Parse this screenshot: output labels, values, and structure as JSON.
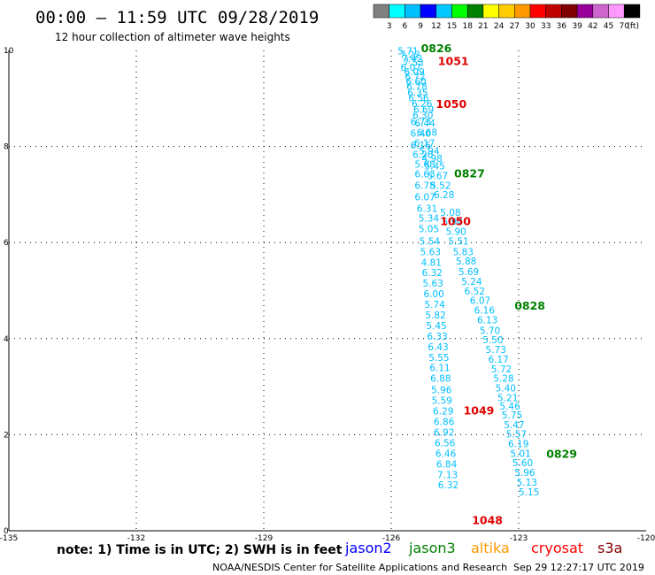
{
  "chart_data": {
    "type": "scatter",
    "title": "00:00 – 11:59 UTC 09/28/2019",
    "subtitle": "12 hour collection of altimeter wave heights",
    "x_ticks": [
      "-135",
      "-132",
      "-129",
      "-126",
      "-123",
      "-120"
    ],
    "y_ticks": [
      "0",
      "2",
      "4",
      "6",
      "8",
      "10"
    ],
    "xlim": [
      -135,
      -120
    ],
    "ylim": [
      0,
      10
    ],
    "grid": true,
    "colorbar": {
      "labels": [
        "3",
        "6",
        "9",
        "12",
        "15",
        "18",
        "21",
        "24",
        "27",
        "30",
        "33",
        "36",
        "39",
        "42",
        "45",
        "70"
      ],
      "unit": "(ft)",
      "colors": [
        "#808080",
        "#00ffff",
        "#00bfff",
        "#0000ff",
        "#00c8ff",
        "#00ff00",
        "#008000",
        "#ffff00",
        "#ffcc00",
        "#ff9900",
        "#ff0000",
        "#c00000",
        "#800000",
        "#990099",
        "#cc66cc",
        "#ff99ff",
        "#000000"
      ]
    },
    "tracks": [
      {
        "name": "track-a",
        "color": "#00bfff",
        "points": [
          {
            "x": -125.85,
            "y": 9.92,
            "v": "5.71"
          },
          {
            "x": -125.8,
            "y": 9.84,
            "v": "7.22"
          },
          {
            "x": -125.75,
            "y": 9.76,
            "v": "7.42"
          },
          {
            "x": -125.72,
            "y": 9.68,
            "v": "7.53"
          },
          {
            "x": -125.78,
            "y": 9.58,
            "v": "6.07"
          },
          {
            "x": -125.7,
            "y": 9.48,
            "v": "6.09"
          },
          {
            "x": -125.68,
            "y": 9.38,
            "v": "6.72"
          },
          {
            "x": -125.66,
            "y": 9.28,
            "v": "6.60"
          },
          {
            "x": -125.64,
            "y": 9.18,
            "v": "6.78"
          },
          {
            "x": -125.62,
            "y": 9.05,
            "v": "6.35"
          },
          {
            "x": -125.6,
            "y": 8.94,
            "v": "6.56"
          },
          {
            "x": -125.52,
            "y": 8.82,
            "v": "6.26"
          },
          {
            "x": -125.48,
            "y": 8.7,
            "v": "6.69"
          },
          {
            "x": -125.5,
            "y": 8.58,
            "v": "6.30"
          },
          {
            "x": -125.55,
            "y": 8.44,
            "v": "6.73"
          },
          {
            "x": -125.45,
            "y": 8.42,
            "v": "6.44"
          },
          {
            "x": -125.4,
            "y": 8.22,
            "v": "6.68"
          },
          {
            "x": -125.55,
            "y": 8.2,
            "v": "6.40"
          },
          {
            "x": -125.46,
            "y": 8.0,
            "v": "6.17"
          },
          {
            "x": -125.55,
            "y": 7.96,
            "v": "6.16"
          },
          {
            "x": -125.35,
            "y": 7.84,
            "v": "5.94"
          },
          {
            "x": -125.5,
            "y": 7.76,
            "v": "6.20"
          },
          {
            "x": -125.28,
            "y": 7.68,
            "v": "4.98"
          },
          {
            "x": -125.45,
            "y": 7.56,
            "v": "5.68"
          },
          {
            "x": -125.22,
            "y": 7.52,
            "v": "5.45"
          },
          {
            "x": -125.45,
            "y": 7.36,
            "v": "6.63"
          },
          {
            "x": -125.15,
            "y": 7.32,
            "v": "5.67"
          },
          {
            "x": -125.45,
            "y": 7.12,
            "v": "6.78"
          },
          {
            "x": -125.08,
            "y": 7.12,
            "v": "5.52"
          },
          {
            "x": -125.0,
            "y": 6.92,
            "v": "6.28"
          },
          {
            "x": -125.45,
            "y": 6.88,
            "v": "6.07"
          },
          {
            "x": -125.4,
            "y": 6.64,
            "v": "6.31"
          },
          {
            "x": -124.85,
            "y": 6.56,
            "v": "5.08"
          },
          {
            "x": -125.36,
            "y": 6.44,
            "v": "5.34"
          },
          {
            "x": -124.8,
            "y": 6.36,
            "v": "5.94"
          },
          {
            "x": -125.36,
            "y": 6.22,
            "v": "5.05"
          },
          {
            "x": -124.72,
            "y": 6.16,
            "v": "5.90"
          },
          {
            "x": -125.34,
            "y": 5.96,
            "v": "5.54"
          },
          {
            "x": -124.66,
            "y": 5.96,
            "v": "5.51"
          },
          {
            "x": -125.32,
            "y": 5.74,
            "v": "5.63"
          },
          {
            "x": -124.55,
            "y": 5.74,
            "v": "5.83"
          },
          {
            "x": -125.3,
            "y": 5.52,
            "v": "4.81"
          },
          {
            "x": -124.48,
            "y": 5.54,
            "v": "5.88"
          },
          {
            "x": -124.42,
            "y": 5.32,
            "v": "5.69"
          },
          {
            "x": -125.28,
            "y": 5.3,
            "v": "6.32"
          },
          {
            "x": -124.35,
            "y": 5.12,
            "v": "5.24"
          },
          {
            "x": -125.26,
            "y": 5.08,
            "v": "5.63"
          },
          {
            "x": -124.28,
            "y": 4.92,
            "v": "6.52"
          },
          {
            "x": -125.24,
            "y": 4.86,
            "v": "6.00"
          },
          {
            "x": -124.15,
            "y": 4.72,
            "v": "6.07"
          },
          {
            "x": -125.22,
            "y": 4.64,
            "v": "5.74"
          },
          {
            "x": -124.05,
            "y": 4.52,
            "v": "6.16"
          },
          {
            "x": -125.2,
            "y": 4.42,
            "v": "5.82"
          },
          {
            "x": -123.98,
            "y": 4.32,
            "v": "6.13"
          },
          {
            "x": -125.18,
            "y": 4.2,
            "v": "5.45"
          },
          {
            "x": -123.92,
            "y": 4.1,
            "v": "5.70"
          },
          {
            "x": -125.16,
            "y": 3.98,
            "v": "6.33"
          },
          {
            "x": -123.85,
            "y": 3.9,
            "v": "5.50"
          },
          {
            "x": -125.14,
            "y": 3.76,
            "v": "6.43"
          },
          {
            "x": -123.78,
            "y": 3.7,
            "v": "5.73"
          },
          {
            "x": -125.12,
            "y": 3.54,
            "v": "5.55"
          },
          {
            "x": -123.72,
            "y": 3.5,
            "v": "6.17"
          },
          {
            "x": -125.1,
            "y": 3.32,
            "v": "6.11"
          },
          {
            "x": -123.65,
            "y": 3.3,
            "v": "5.72"
          },
          {
            "x": -125.08,
            "y": 3.1,
            "v": "6.88"
          },
          {
            "x": -123.6,
            "y": 3.1,
            "v": "5.28"
          },
          {
            "x": -123.55,
            "y": 2.9,
            "v": "5.40"
          },
          {
            "x": -125.06,
            "y": 2.86,
            "v": "5.96"
          },
          {
            "x": -123.5,
            "y": 2.7,
            "v": "5.21"
          },
          {
            "x": -125.05,
            "y": 2.64,
            "v": "5.59"
          },
          {
            "x": -123.45,
            "y": 2.52,
            "v": "5.46"
          },
          {
            "x": -123.4,
            "y": 2.34,
            "v": "5.75"
          },
          {
            "x": -125.02,
            "y": 2.42,
            "v": "6.29"
          },
          {
            "x": -123.35,
            "y": 2.14,
            "v": "5.47"
          },
          {
            "x": -125.0,
            "y": 2.2,
            "v": "6.86"
          },
          {
            "x": -123.3,
            "y": 1.94,
            "v": "5.57"
          },
          {
            "x": -125.0,
            "y": 1.98,
            "v": "6.92"
          },
          {
            "x": -123.25,
            "y": 1.74,
            "v": "6.19"
          },
          {
            "x": -124.98,
            "y": 1.76,
            "v": "6.56"
          },
          {
            "x": -123.2,
            "y": 1.54,
            "v": "5.01"
          },
          {
            "x": -124.96,
            "y": 1.54,
            "v": "6.46"
          },
          {
            "x": -123.15,
            "y": 1.34,
            "v": "5.60"
          },
          {
            "x": -124.94,
            "y": 1.32,
            "v": "6.84"
          },
          {
            "x": -123.1,
            "y": 1.14,
            "v": "5.96"
          },
          {
            "x": -124.92,
            "y": 1.1,
            "v": "7.13"
          },
          {
            "x": -123.05,
            "y": 0.94,
            "v": "5.13"
          },
          {
            "x": -124.9,
            "y": 0.88,
            "v": "6.32"
          },
          {
            "x": -123.0,
            "y": 0.74,
            "v": "5.15"
          }
        ]
      }
    ],
    "time_labels": [
      {
        "x": -125.3,
        "y": 9.96,
        "v": "0826",
        "color": "#008000"
      },
      {
        "x": -124.9,
        "y": 9.7,
        "v": "1051",
        "color": "#e00000"
      },
      {
        "x": -124.95,
        "y": 8.8,
        "v": "1050",
        "color": "#e00000"
      },
      {
        "x": -124.52,
        "y": 7.36,
        "v": "0827",
        "color": "#008000"
      },
      {
        "x": -124.85,
        "y": 6.36,
        "v": "1050",
        "color": "#e00000"
      },
      {
        "x": -123.1,
        "y": 4.6,
        "v": "0828",
        "color": "#008000"
      },
      {
        "x": -124.3,
        "y": 2.42,
        "v": "1049",
        "color": "#e00000"
      },
      {
        "x": -122.35,
        "y": 1.52,
        "v": "0829",
        "color": "#008000"
      },
      {
        "x": -124.1,
        "y": 0.14,
        "v": "1048",
        "color": "#e00000"
      }
    ],
    "note": "note:  1) Time is in UTC; 2) SWH is in feet",
    "satellites": [
      {
        "name": "jason2",
        "color": "#0000ff"
      },
      {
        "name": "jason3",
        "color": "#008000"
      },
      {
        "name": "altika",
        "color": "#ff9900"
      },
      {
        "name": "cryosat",
        "color": "#ff0000"
      },
      {
        "name": "s3a",
        "color": "#800000"
      }
    ],
    "footer_left": "NOAA/NESDIS Center for Satellite Applications and Research",
    "footer_right": "Sep 29 12:27:17 UTC 2019"
  }
}
